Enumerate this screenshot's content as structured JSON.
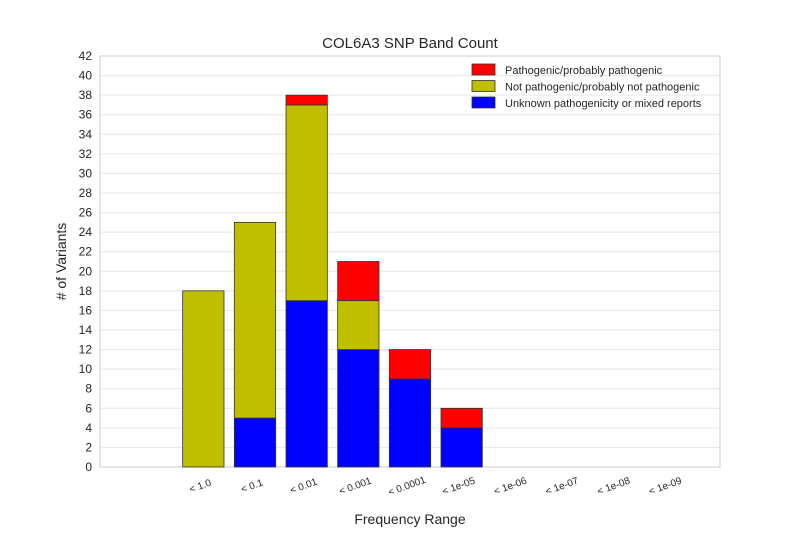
{
  "chart_data": {
    "type": "bar",
    "stacked": true,
    "title": "COL6A3 SNP Band Count",
    "xlabel": "Frequency Range",
    "ylabel": "# of Variants",
    "categories": [
      "< 1.0",
      "< 0.1",
      "< 0.01",
      "< 0.001",
      "< 0.0001",
      "< 1e-05",
      "< 1e-06",
      "< 1e-07",
      "< 1e-08",
      "< 1e-09"
    ],
    "series": [
      {
        "name": "Unknown pathogenicity or mixed reports",
        "color": "#0000ff",
        "values": [
          0,
          5,
          17,
          12,
          9,
          4,
          0,
          0,
          0,
          0
        ]
      },
      {
        "name": "Not pathogenic/probably not pathogenic",
        "color": "#bfbf00",
        "values": [
          18,
          20,
          20,
          5,
          0,
          0,
          0,
          0,
          0,
          0
        ]
      },
      {
        "name": "Pathogenic/probably pathogenic",
        "color": "#ff0000",
        "values": [
          0,
          0,
          1,
          4,
          3,
          2,
          0,
          0,
          0,
          0
        ]
      }
    ],
    "legend_order": [
      2,
      1,
      0
    ],
    "ylim": [
      0,
      42
    ],
    "yticks": [
      0,
      2,
      4,
      6,
      8,
      10,
      12,
      14,
      16,
      18,
      20,
      22,
      24,
      26,
      28,
      30,
      32,
      34,
      36,
      38,
      40,
      42
    ],
    "grid": true,
    "legend_position": "top-right"
  }
}
